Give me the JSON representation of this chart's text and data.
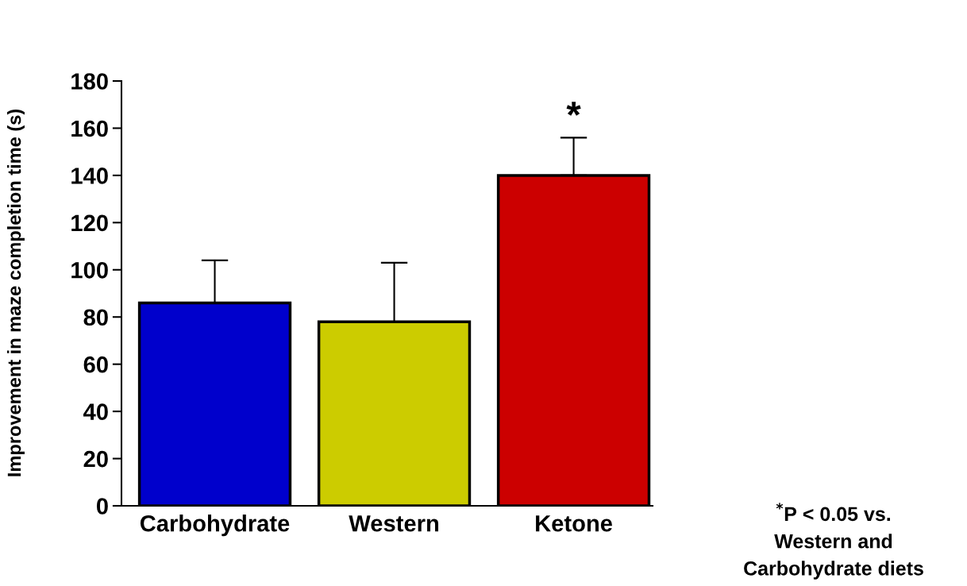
{
  "chart_data": {
    "type": "bar",
    "ylabel": "Improvement in maze completion time (s)",
    "categories": [
      "Carbohydrate",
      "Western",
      "Ketone"
    ],
    "values": [
      86,
      78,
      140
    ],
    "colors": [
      "#0000cc",
      "#cccc00",
      "#cc0000"
    ],
    "errors": [
      [
        86,
        104
      ],
      [
        78,
        103
      ],
      [
        140,
        156
      ]
    ],
    "ylim": [
      0,
      180
    ],
    "yticks": [
      0,
      20,
      40,
      60,
      80,
      100,
      120,
      140,
      160,
      180
    ],
    "grid": false,
    "legend": false,
    "annotations": [
      {
        "text": "*",
        "x": "Ketone",
        "y": 156
      },
      "$^{*}$P < 0.05 vs.\nWestern and\nCarbohydrate diets"
    ]
  }
}
